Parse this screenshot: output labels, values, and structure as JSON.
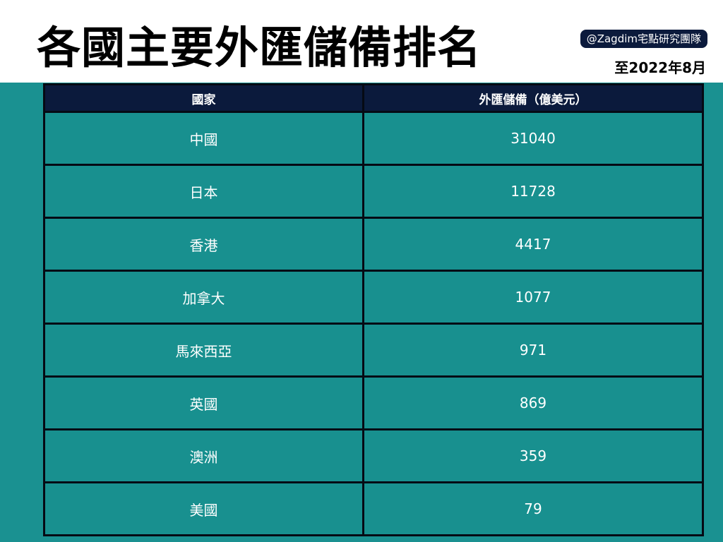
{
  "header": {
    "title": "各國主要外匯儲備排名",
    "badge": "@Zagdim宅點研究團隊",
    "date": "至2022年8月"
  },
  "colors": {
    "background": "#1a9191",
    "header": "#0b1a3c",
    "cell": "#18908f"
  },
  "chart_data": {
    "type": "table",
    "columns": [
      "國家",
      "外匯儲備（億美元）"
    ],
    "rows": [
      [
        "中國",
        "31040"
      ],
      [
        "日本",
        "11728"
      ],
      [
        "香港",
        "4417"
      ],
      [
        "加拿大",
        "1077"
      ],
      [
        "馬來西亞",
        "971"
      ],
      [
        "英國",
        "869"
      ],
      [
        "澳洲",
        "359"
      ],
      [
        "美國",
        "79"
      ]
    ]
  }
}
